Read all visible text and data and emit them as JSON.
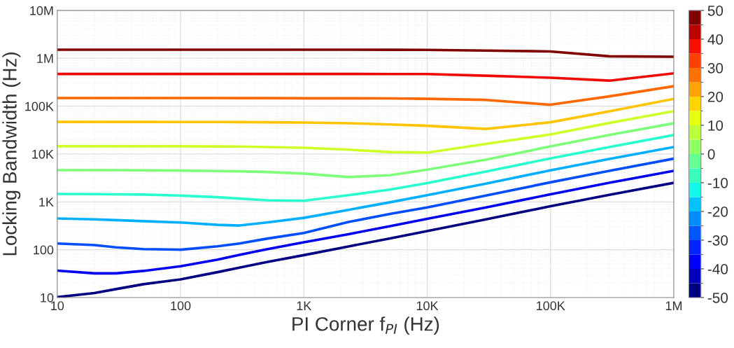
{
  "chart_data": {
    "type": "line",
    "xlabel": "PI Corner f$_{PI}$ (Hz)",
    "ylabel": "Locking Bandwidth (Hz)",
    "x": [
      10,
      20,
      30,
      50,
      100,
      200,
      300,
      500,
      1000,
      2300,
      5000,
      10000,
      30000,
      100000,
      300000,
      1000000
    ],
    "series": [
      {
        "color": "#000080",
        "values": [
          10.2,
          12.4,
          15,
          19,
          24,
          34,
          42,
          55,
          77,
          117,
          172,
          245,
          430,
          811,
          1400,
          2500
        ]
      },
      {
        "color": "#0000f1",
        "values": [
          36.5,
          32,
          32,
          36,
          45,
          62,
          78,
          102,
          143,
          211,
          310,
          441,
          765,
          1440,
          2500,
          4450
        ]
      },
      {
        "color": "#004cff",
        "values": [
          135,
          125,
          112,
          103,
          100,
          118,
          135,
          170,
          224,
          379,
          560,
          766,
          1350,
          2560,
          4450,
          8000
        ]
      },
      {
        "color": "#00b0ff",
        "values": [
          449,
          430,
          415,
          395,
          370,
          330,
          320,
          370,
          463,
          681,
          980,
          1380,
          2400,
          4560,
          7900,
          14000
        ]
      },
      {
        "color": "#29ffce",
        "values": [
          1460,
          1450,
          1440,
          1420,
          1350,
          1250,
          1170,
          1080,
          1050,
          1380,
          1800,
          2470,
          4300,
          8100,
          14000,
          24900
        ]
      },
      {
        "color": "#7dff7a",
        "values": [
          4600,
          4600,
          4600,
          4550,
          4500,
          4400,
          4350,
          4200,
          3900,
          3300,
          3600,
          4700,
          7600,
          14400,
          24900,
          43800
        ]
      },
      {
        "color": "#ceff29",
        "values": [
          14500,
          14500,
          14500,
          14500,
          14500,
          14400,
          14300,
          14000,
          13500,
          12300,
          11000,
          10700,
          16300,
          25600,
          44500,
          78700
        ]
      },
      {
        "color": "#ffc400",
        "values": [
          46800,
          46800,
          46800,
          46800,
          46600,
          46500,
          46400,
          46000,
          45500,
          44000,
          41500,
          38900,
          33400,
          46000,
          78000,
          142000
        ]
      },
      {
        "color": "#ff6800",
        "values": [
          148000,
          148000,
          148000,
          148000,
          148000,
          148000,
          147000,
          147000,
          146000,
          146000,
          145000,
          142000,
          135000,
          107000,
          160000,
          261000
        ]
      },
      {
        "color": "#f10800",
        "values": [
          470000,
          470000,
          470000,
          470000,
          470000,
          470000,
          470000,
          470000,
          470000,
          470000,
          469000,
          468000,
          432000,
          393000,
          341000,
          485000
        ]
      },
      {
        "color": "#800000",
        "values": [
          1510000,
          1510000,
          1510000,
          1510000,
          1510000,
          1510000,
          1510000,
          1510000,
          1510000,
          1510000,
          1505000,
          1500000,
          1450000,
          1390000,
          1100000,
          1080000
        ]
      }
    ],
    "log": "xy",
    "xlim": [
      10,
      1000000
    ],
    "ylim": [
      10,
      10000000
    ],
    "xticks": [
      10,
      100,
      {
        "value": 1000,
        "label": "1K"
      },
      {
        "value": 10000,
        "label": "10K"
      },
      {
        "value": 100000,
        "label": "100K"
      },
      {
        "value": 1000000,
        "label": "1M"
      }
    ],
    "yticks": [
      10,
      100,
      {
        "value": 1000,
        "label": "1K"
      },
      {
        "value": 10000,
        "label": "10K"
      },
      {
        "value": 100000,
        "label": "100K"
      },
      {
        "value": 1000000,
        "label": "1M"
      },
      {
        "value": 10000000,
        "label": "10M"
      }
    ],
    "grid": true,
    "legend": false,
    "clim": [
      -50,
      50
    ],
    "cticks": [
      -50,
      -40,
      -30,
      -20,
      -10,
      0,
      10,
      20,
      30,
      40,
      50
    ]
  }
}
